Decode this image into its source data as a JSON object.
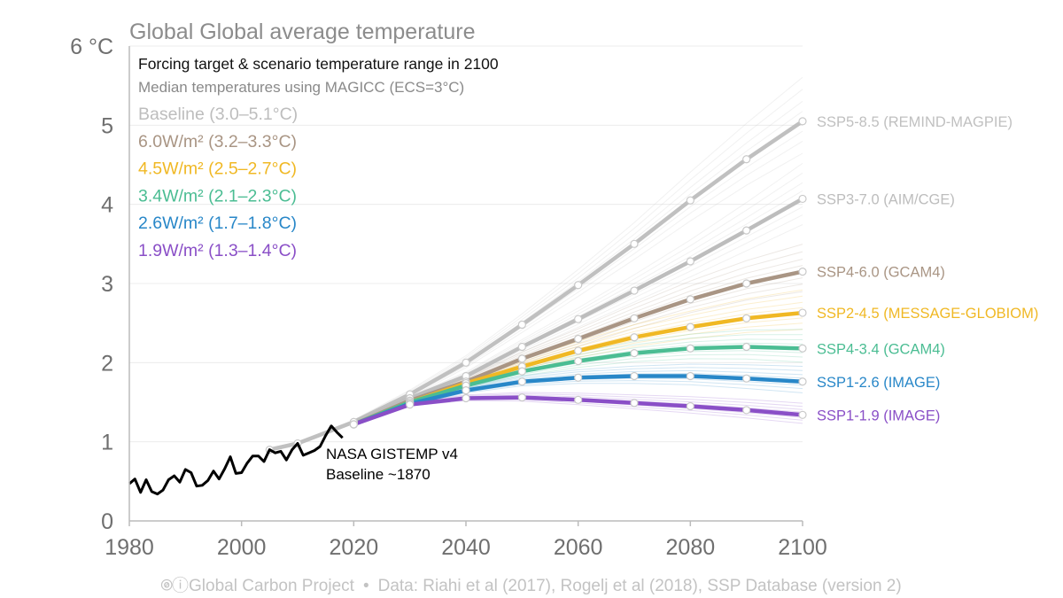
{
  "chart_data": {
    "type": "line",
    "title": "Global Global average temperature",
    "subtitle": "Forcing target & scenario temperature range in 2100",
    "note": "Median temperatures using MAGICC (ECS=3°C)",
    "xlim": [
      1980,
      2100
    ],
    "ylim": [
      0,
      6
    ],
    "x_ticks": [
      "1980",
      "2000",
      "2020",
      "2040",
      "2060",
      "2080",
      "2100"
    ],
    "y_ticks": [
      "0",
      "1",
      "2",
      "3",
      "4",
      "5",
      "6 °C"
    ],
    "grid": "horizontal",
    "legend_position": "top-left",
    "legend": [
      {
        "label": "Baseline (3.0–5.1°C)",
        "color": "#bdbdbd"
      },
      {
        "label": "6.0W/m² (3.2–3.3°C)",
        "color": "#a99584"
      },
      {
        "label": "4.5W/m² (2.5–2.7°C)",
        "color": "#f0b824"
      },
      {
        "label": "3.4W/m² (2.1–2.3°C)",
        "color": "#4bbd93"
      },
      {
        "label": "2.6W/m² (1.7–1.8°C)",
        "color": "#2887c8"
      },
      {
        "label": "1.9W/m² (1.3–1.4°C)",
        "color": "#8a4fc7"
      }
    ],
    "observations": {
      "label": "NASA GISTEMP v4",
      "sublabel": "Baseline ~1870",
      "color": "#000000",
      "x": [
        1980,
        1981,
        1982,
        1983,
        1984,
        1985,
        1986,
        1987,
        1988,
        1989,
        1990,
        1991,
        1992,
        1993,
        1994,
        1995,
        1996,
        1997,
        1998,
        1999,
        2000,
        2001,
        2002,
        2003,
        2004,
        2005,
        2006,
        2007,
        2008,
        2009,
        2010,
        2011,
        2012,
        2013,
        2014,
        2015,
        2016,
        2017,
        2018
      ],
      "y": [
        0.47,
        0.53,
        0.36,
        0.52,
        0.37,
        0.34,
        0.39,
        0.52,
        0.57,
        0.49,
        0.65,
        0.61,
        0.44,
        0.45,
        0.51,
        0.63,
        0.53,
        0.66,
        0.81,
        0.6,
        0.61,
        0.73,
        0.82,
        0.82,
        0.75,
        0.9,
        0.86,
        0.88,
        0.77,
        0.9,
        0.98,
        0.83,
        0.86,
        0.89,
        0.94,
        1.08,
        1.2,
        1.12,
        1.05
      ]
    },
    "series": [
      {
        "name": "SSP5-8.5 (REMIND-MAGPIE)",
        "color": "#c0c0c0",
        "x": [
          2005,
          2010,
          2020,
          2030,
          2040,
          2050,
          2060,
          2070,
          2080,
          2090,
          2100
        ],
        "y": [
          0.9,
          0.98,
          1.25,
          1.6,
          2.0,
          2.48,
          2.98,
          3.5,
          4.05,
          4.57,
          5.05
        ]
      },
      {
        "name": "SSP3-7.0 (AIM/CGE)",
        "color": "#bdbdbd",
        "x": [
          2020,
          2030,
          2040,
          2050,
          2060,
          2070,
          2080,
          2090,
          2100
        ],
        "y": [
          1.25,
          1.55,
          1.83,
          2.2,
          2.55,
          2.91,
          3.28,
          3.67,
          4.07
        ]
      },
      {
        "name": "SSP4-6.0 (GCAM4)",
        "color": "#a99584",
        "x": [
          2020,
          2030,
          2040,
          2050,
          2060,
          2070,
          2080,
          2090,
          2100
        ],
        "y": [
          1.22,
          1.52,
          1.76,
          2.05,
          2.3,
          2.56,
          2.8,
          3.0,
          3.15
        ]
      },
      {
        "name": "SSP2-4.5 (MESSAGE-GLOBIOM)",
        "color": "#f0b824",
        "x": [
          2020,
          2030,
          2040,
          2050,
          2060,
          2070,
          2080,
          2090,
          2100
        ],
        "y": [
          1.22,
          1.5,
          1.74,
          1.95,
          2.15,
          2.32,
          2.45,
          2.56,
          2.63
        ]
      },
      {
        "name": "SSP4-3.4 (GCAM4)",
        "color": "#4bbd93",
        "x": [
          2020,
          2030,
          2040,
          2050,
          2060,
          2070,
          2080,
          2090,
          2100
        ],
        "y": [
          1.22,
          1.5,
          1.71,
          1.89,
          2.02,
          2.12,
          2.18,
          2.2,
          2.18
        ]
      },
      {
        "name": "SSP1-2.6 (IMAGE)",
        "color": "#2887c8",
        "x": [
          2020,
          2030,
          2040,
          2050,
          2060,
          2070,
          2080,
          2090,
          2100
        ],
        "y": [
          1.22,
          1.48,
          1.65,
          1.76,
          1.81,
          1.83,
          1.83,
          1.8,
          1.76
        ]
      },
      {
        "name": "SSP1-1.9 (IMAGE)",
        "color": "#8a4fc7",
        "x": [
          2020,
          2030,
          2040,
          2050,
          2060,
          2070,
          2080,
          2090,
          2100
        ],
        "y": [
          1.22,
          1.47,
          1.55,
          1.56,
          1.53,
          1.49,
          1.45,
          1.4,
          1.34
        ]
      }
    ]
  },
  "footer": {
    "org": "Global Carbon Project",
    "separator": "•",
    "source": "Data: Riahi et al (2017), Rogelj et al (2018), SSP Database (version 2)"
  }
}
